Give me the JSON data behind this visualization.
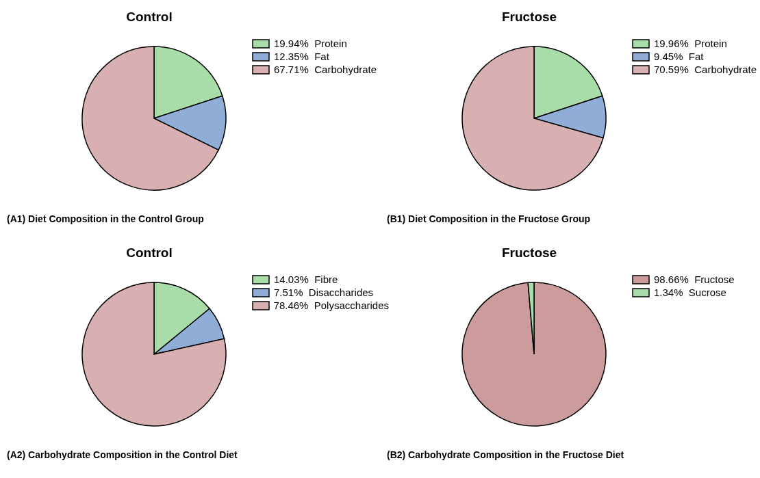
{
  "chart_data": [
    {
      "type": "pie",
      "title": "Control",
      "categories": [
        "19.94%  Protein",
        "12.35%  Fat",
        "67.71%  Carbohydrate"
      ],
      "values": [
        19.94,
        12.35,
        67.71
      ],
      "colors": [
        "#a8ddaa",
        "#8fadd6",
        "#d9b0b1"
      ],
      "legend": "right",
      "annotations": [
        "(A1) Diet Composition in the Control Group"
      ]
    },
    {
      "type": "pie",
      "title": "Fructose",
      "categories": [
        "19.96%  Protein",
        "9.45%  Fat",
        "70.59%  Carbohydrate"
      ],
      "values": [
        19.96,
        9.45,
        70.59
      ],
      "colors": [
        "#a8ddaa",
        "#8fadd6",
        "#d9b0b1"
      ],
      "legend": "right",
      "annotations": [
        "(B1) Diet Composition in the Fructose Group"
      ]
    },
    {
      "type": "pie",
      "title": "Control",
      "categories": [
        "14.03%  Fibre",
        "7.51%  Disaccharides",
        "78.46%  Polysaccharides"
      ],
      "values": [
        14.03,
        7.51,
        78.46
      ],
      "colors": [
        "#a8ddaa",
        "#8fadd6",
        "#d9b0b1"
      ],
      "legend": "right",
      "annotations": [
        "(A2) Carbohydrate Composition in the Control Diet"
      ]
    },
    {
      "type": "pie",
      "title": "Fructose",
      "categories": [
        "98.66%  Fructose",
        "1.34%  Sucrose"
      ],
      "values": [
        98.66,
        1.34
      ],
      "colors": [
        "#cc9c9c",
        "#a8ddaa"
      ],
      "legend": "right",
      "annotations": [
        "(B2) Carbohydrate Composition in the Fructose Diet"
      ]
    }
  ]
}
